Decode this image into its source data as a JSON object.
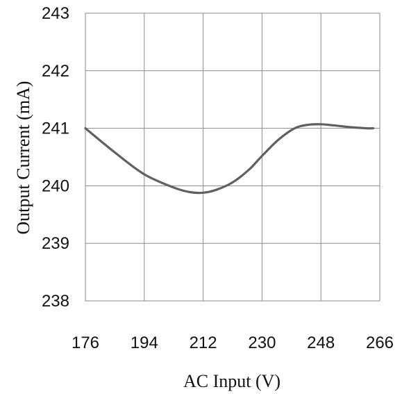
{
  "chart_data": {
    "type": "line",
    "title": "",
    "xlabel": "AC Input (V)",
    "ylabel": "Output Current (mA)",
    "xlim": [
      176,
      266
    ],
    "ylim": [
      238,
      243
    ],
    "x_ticks": [
      "176",
      "194",
      "212",
      "230",
      "248",
      "266"
    ],
    "y_ticks": [
      "243",
      "242",
      "241",
      "240",
      "239",
      "238"
    ],
    "grid": true,
    "series": [
      {
        "x": [
          176,
          185,
          194,
          203,
          208,
          212,
          216,
          221,
          226,
          230,
          235,
          240,
          244,
          248,
          252,
          257,
          262,
          264
        ],
        "y": [
          241.0,
          240.58,
          240.2,
          239.97,
          239.89,
          239.88,
          239.93,
          240.06,
          240.28,
          240.52,
          240.8,
          241.0,
          241.06,
          241.07,
          241.05,
          241.02,
          241.0,
          241.0
        ],
        "color": "#606060"
      }
    ]
  }
}
